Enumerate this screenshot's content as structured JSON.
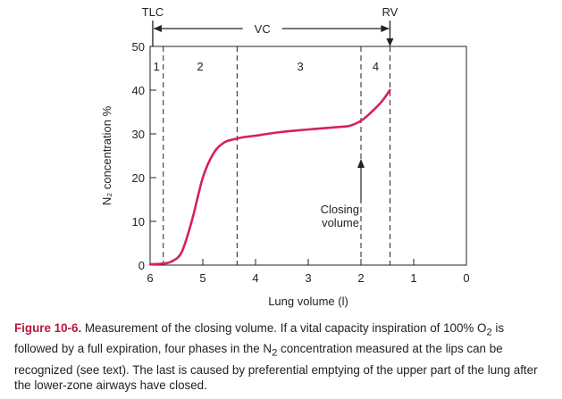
{
  "chart_data": {
    "type": "line",
    "xlabel": "Lung volume (l)",
    "ylabel": "N₂ concentration %",
    "xlim": [
      6,
      0
    ],
    "ylim": [
      0,
      50
    ],
    "x_ticks": [
      "6",
      "5",
      "4",
      "3",
      "2",
      "1",
      "0"
    ],
    "y_ticks": [
      "0",
      "10",
      "20",
      "30",
      "40",
      "50"
    ],
    "series": [
      {
        "color": "#d6215a",
        "x": [
          6.0,
          5.8,
          5.6,
          5.4,
          5.2,
          5.0,
          4.8,
          4.6,
          4.4,
          4.2,
          4.0,
          3.6,
          3.2,
          2.8,
          2.4,
          2.2,
          2.0,
          1.8,
          1.6,
          1.45
        ],
        "y": [
          0.2,
          0.3,
          0.8,
          3.0,
          10.5,
          20.0,
          25.5,
          28.0,
          28.8,
          29.3,
          29.6,
          30.3,
          30.8,
          31.2,
          31.6,
          31.9,
          33.0,
          35.0,
          37.5,
          40.0
        ]
      }
    ],
    "phase_boundaries": [
      5.75,
      4.35,
      2.0,
      1.45
    ],
    "phase_labels": [
      "1",
      "2",
      "3",
      "4"
    ],
    "phase_label_positions": [
      5.88,
      5.05,
      3.15,
      1.72
    ],
    "markers": {
      "tlc_label": "TLC",
      "rv_label": "RV",
      "vc_label": "VC",
      "tlc_x": 5.95,
      "rv_x": 1.45
    },
    "annotation": {
      "line1": "Closing",
      "line2": "volume",
      "x": 2.0
    }
  },
  "caption": {
    "label": "Figure 10-6.",
    "text_1": "Measurement of the closing volume. If a vital capacity inspiration of 100% O",
    "sub_1": "2",
    "text_2": " is followed by a full expiration, four phases in the N",
    "sub_2": "2",
    "text_3": " concentration measured at the lips can be recognized (see text). The last is caused by preferential emptying of the upper part of the lung after the lower-zone airways have closed."
  },
  "colors": {
    "curve": "#d6215a",
    "caption_label": "#b6173f",
    "axis": "#222222"
  }
}
